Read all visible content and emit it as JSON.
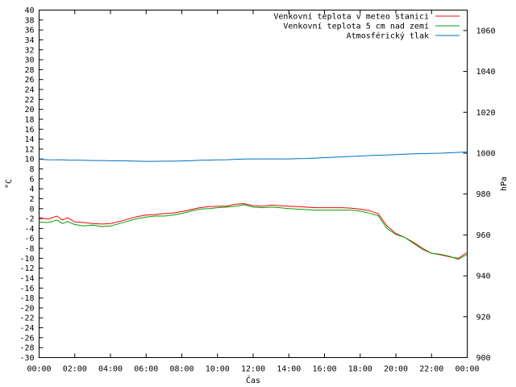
{
  "chart_data": {
    "type": "line",
    "title": "",
    "xlabel": "Čas",
    "ylabel": "°C",
    "y2label": "hPa",
    "xlim": [
      "00:00",
      "00:00"
    ],
    "ylim": [
      -30,
      40
    ],
    "y2lim": [
      900,
      1070
    ],
    "grid": false,
    "legend_position": "top-right",
    "x_ticks": [
      "00:00",
      "02:00",
      "04:00",
      "06:00",
      "08:00",
      "10:00",
      "12:00",
      "14:00",
      "16:00",
      "18:00",
      "20:00",
      "22:00",
      "00:00"
    ],
    "y_ticks": [
      40,
      38,
      36,
      34,
      32,
      30,
      28,
      26,
      24,
      22,
      20,
      18,
      16,
      14,
      12,
      10,
      8,
      6,
      4,
      2,
      0,
      -2,
      -4,
      -6,
      -8,
      -10,
      -12,
      -14,
      -16,
      -18,
      -20,
      -22,
      -24,
      -26,
      -28,
      -30
    ],
    "y2_ticks": [
      1060,
      1040,
      1020,
      1000,
      980,
      960,
      940,
      920,
      900
    ],
    "x_hours": [
      0,
      0.5,
      1,
      1.3,
      1.6,
      2,
      2.5,
      3,
      3.5,
      4,
      4.5,
      5,
      5.5,
      6,
      6.5,
      7,
      7.5,
      8,
      8.5,
      9,
      9.5,
      10,
      10.5,
      11,
      11.5,
      12,
      12.5,
      13,
      13.5,
      14,
      14.5,
      15,
      15.5,
      16,
      16.5,
      17,
      17.5,
      18,
      18.5,
      19,
      19.5,
      20,
      20.5,
      21,
      21.5,
      22,
      22.5,
      23,
      23.5,
      24
    ],
    "series": [
      {
        "name": "Venkovní teplota v meteo stanici",
        "color": "#ff0000",
        "axis": "left",
        "values": [
          -1.8,
          -2.1,
          -1.5,
          -2.3,
          -1.8,
          -2.7,
          -2.8,
          -3.0,
          -3.1,
          -3.0,
          -2.6,
          -2.1,
          -1.6,
          -1.3,
          -1.2,
          -1.0,
          -0.9,
          -0.6,
          -0.2,
          0.2,
          0.4,
          0.5,
          0.5,
          0.9,
          1.0,
          0.6,
          0.5,
          0.7,
          0.6,
          0.5,
          0.4,
          0.3,
          0.2,
          0.2,
          0.2,
          0.2,
          0.1,
          -0.1,
          -0.4,
          -1.0,
          -3.5,
          -5.0,
          -5.8,
          -6.8,
          -8.0,
          -9.0,
          -9.3,
          -9.7,
          -10.0,
          -8.8
        ]
      },
      {
        "name": "Venkovní teplota 5 cm nad zemí",
        "color": "#00a000",
        "axis": "left",
        "values": [
          -2.7,
          -2.8,
          -2.3,
          -3.0,
          -2.6,
          -3.2,
          -3.5,
          -3.3,
          -3.6,
          -3.5,
          -3.0,
          -2.5,
          -2.0,
          -1.7,
          -1.5,
          -1.5,
          -1.3,
          -1.0,
          -0.5,
          -0.1,
          0.0,
          0.2,
          0.3,
          0.5,
          0.8,
          0.3,
          0.2,
          0.3,
          0.2,
          0.0,
          -0.1,
          -0.2,
          -0.3,
          -0.3,
          -0.3,
          -0.3,
          -0.3,
          -0.5,
          -0.9,
          -1.4,
          -4.0,
          -5.2,
          -5.8,
          -7.0,
          -8.2,
          -9.0,
          -9.2,
          -9.6,
          -10.2,
          -9.2
        ]
      },
      {
        "name": "Atmosférický tlak",
        "color": "#0070c0",
        "axis": "right",
        "values": [
          997.0,
          996.8,
          996.7,
          996.8,
          996.6,
          996.6,
          996.5,
          996.4,
          996.4,
          996.3,
          996.3,
          996.2,
          996.1,
          996.0,
          996.0,
          996.1,
          996.1,
          996.2,
          996.3,
          996.5,
          996.6,
          996.7,
          996.8,
          997.0,
          997.1,
          997.2,
          997.2,
          997.2,
          997.2,
          997.2,
          997.3,
          997.4,
          997.6,
          997.8,
          998.0,
          998.2,
          998.4,
          998.6,
          998.8,
          999.0,
          999.1,
          999.3,
          999.5,
          999.7,
          999.8,
          999.9,
          1000.0,
          1000.2,
          1000.4,
          1000.6
        ]
      }
    ]
  }
}
